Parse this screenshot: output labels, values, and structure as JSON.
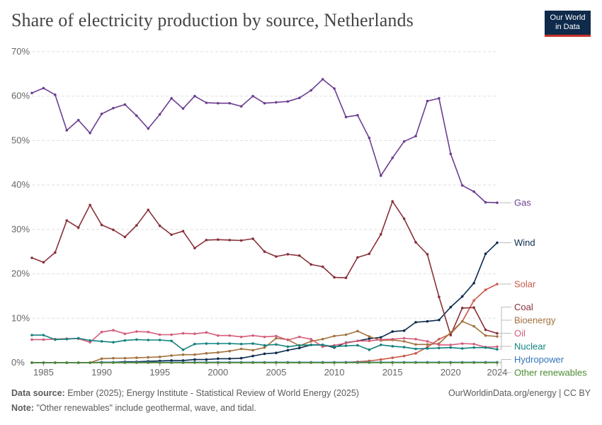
{
  "title": "Share of electricity production by source, Netherlands",
  "logo": {
    "line1": "Our World",
    "line2": "in Data"
  },
  "footer": {
    "source_label": "Data source:",
    "source_text": "Ember (2025); Energy Institute - Statistical Review of World Energy (2025)",
    "url": "OurWorldinData.org/energy | CC BY",
    "note_label": "Note:",
    "note_text": "\"Other renewables\" include geothermal, wave, and tidal."
  },
  "chart_data": {
    "type": "line",
    "title": "Share of electricity production by source, Netherlands",
    "xlim": [
      1984,
      2024
    ],
    "ylim": [
      0,
      70
    ],
    "y_ticks": [
      0,
      10,
      20,
      30,
      40,
      50,
      60,
      70
    ],
    "y_tick_labels": [
      "0%",
      "10%",
      "20%",
      "30%",
      "40%",
      "50%",
      "60%",
      "70%"
    ],
    "x_ticks": [
      1985,
      1990,
      1995,
      2000,
      2005,
      2010,
      2015,
      2020,
      2024
    ],
    "x_tick_labels": [
      "1985",
      "1990",
      "1995",
      "2000",
      "2005",
      "2010",
      "2015",
      "2020",
      "2024"
    ],
    "grid": "horizontal dashed",
    "legend": "labels at right end of lines",
    "x": [
      1984,
      1985,
      1986,
      1987,
      1988,
      1989,
      1990,
      1991,
      1992,
      1993,
      1994,
      1995,
      1996,
      1997,
      1998,
      1999,
      2000,
      2001,
      2002,
      2003,
      2004,
      2005,
      2006,
      2007,
      2008,
      2009,
      2010,
      2011,
      2012,
      2013,
      2014,
      2015,
      2016,
      2017,
      2018,
      2019,
      2020,
      2021,
      2022,
      2023,
      2024
    ],
    "series": [
      {
        "name": "Gas",
        "color": "#6d3e91",
        "values": [
          60.7,
          61.8,
          60.3,
          52.3,
          54.6,
          51.7,
          56.0,
          57.3,
          58.1,
          55.6,
          52.7,
          55.9,
          59.5,
          57.2,
          60.0,
          58.5,
          58.4,
          58.4,
          57.7,
          60.0,
          58.4,
          58.6,
          58.8,
          59.6,
          61.3,
          63.8,
          61.7,
          55.3,
          55.7,
          50.6,
          42.1,
          46.1,
          49.8,
          51.0,
          58.9,
          59.5,
          47.0,
          39.9,
          38.5,
          36.1,
          36.0
        ]
      },
      {
        "name": "Wind",
        "color": "#0c2b4f",
        "values": [
          0,
          0,
          0,
          0,
          0,
          0,
          0.1,
          0.1,
          0.2,
          0.2,
          0.3,
          0.4,
          0.5,
          0.5,
          0.7,
          0.7,
          0.9,
          0.9,
          1.0,
          1.5,
          2.0,
          2.2,
          2.8,
          3.3,
          4.0,
          4.0,
          3.4,
          4.5,
          4.9,
          5.4,
          5.7,
          7.0,
          7.2,
          9.1,
          9.3,
          9.6,
          12.5,
          14.9,
          17.9,
          24.5,
          27.0
        ]
      },
      {
        "name": "Solar",
        "color": "#c85a4a",
        "values": [
          0,
          0,
          0,
          0,
          0,
          0,
          0,
          0,
          0,
          0,
          0,
          0,
          0,
          0,
          0,
          0,
          0,
          0,
          0,
          0,
          0,
          0,
          0,
          0,
          0,
          0,
          0,
          0.1,
          0.2,
          0.4,
          0.7,
          1.1,
          1.5,
          2.1,
          3.5,
          5.3,
          6.5,
          9.3,
          14.0,
          16.4,
          17.7
        ]
      },
      {
        "name": "Coal",
        "color": "#883039",
        "values": [
          23.6,
          22.6,
          24.8,
          32.0,
          30.4,
          35.5,
          31.0,
          29.9,
          28.3,
          30.9,
          34.4,
          30.8,
          28.8,
          29.6,
          25.8,
          27.6,
          27.7,
          27.6,
          27.5,
          27.9,
          25.0,
          23.9,
          24.4,
          24.1,
          22.1,
          21.6,
          19.2,
          19.1,
          23.7,
          24.5,
          28.9,
          36.3,
          32.4,
          27.1,
          24.4,
          14.8,
          6.2,
          12.3,
          12.4,
          7.4,
          6.6
        ]
      },
      {
        "name": "Bioenergy",
        "color": "#a2723e",
        "values": [
          0,
          0,
          0,
          0,
          0,
          0,
          0.9,
          1.0,
          1.0,
          1.1,
          1.2,
          1.3,
          1.6,
          1.8,
          1.8,
          2.1,
          2.3,
          2.6,
          3.1,
          2.8,
          3.4,
          5.5,
          5.2,
          3.8,
          4.8,
          5.3,
          6.0,
          6.3,
          7.1,
          5.9,
          5.0,
          5.1,
          4.8,
          4.1,
          4.1,
          4.3,
          6.8,
          9.3,
          8.2,
          6.1,
          5.9
        ]
      },
      {
        "name": "Oil",
        "color": "#d45d7a",
        "values": [
          5.2,
          5.2,
          5.3,
          5.4,
          5.4,
          4.6,
          6.9,
          7.3,
          6.5,
          7.0,
          6.9,
          6.3,
          6.3,
          6.6,
          6.5,
          6.8,
          6.1,
          6.1,
          5.8,
          6.1,
          5.8,
          6.0,
          5.1,
          5.8,
          5.3,
          3.6,
          3.9,
          4.4,
          4.9,
          4.9,
          5.2,
          5.3,
          5.5,
          5.3,
          4.8,
          4.0,
          4.0,
          4.3,
          4.2,
          3.5,
          3.6
        ]
      },
      {
        "name": "Nuclear",
        "color": "#12827e",
        "values": [
          6.2,
          6.2,
          5.2,
          5.3,
          5.5,
          5.0,
          4.8,
          4.6,
          5.0,
          5.2,
          5.1,
          5.1,
          4.9,
          2.9,
          4.2,
          4.3,
          4.3,
          4.3,
          4.2,
          4.3,
          3.9,
          4.1,
          3.6,
          3.9,
          4.0,
          4.0,
          3.6,
          3.8,
          3.9,
          2.9,
          4.0,
          3.7,
          3.5,
          3.1,
          3.2,
          3.3,
          3.4,
          3.2,
          3.4,
          3.4,
          3.0
        ]
      },
      {
        "name": "Hydropower",
        "color": "#3575b9",
        "values": [
          0,
          0,
          0,
          0,
          0,
          0,
          0.1,
          0.1,
          0.1,
          0.1,
          0.1,
          0.1,
          0.1,
          0.1,
          0.1,
          0.1,
          0.1,
          0.1,
          0.1,
          0.1,
          0.1,
          0.1,
          0.1,
          0.1,
          0.1,
          0.1,
          0.1,
          0.1,
          0.1,
          0.1,
          0.1,
          0.1,
          0.1,
          0.1,
          0.1,
          0.1,
          0.1,
          0.1,
          0.1,
          0.1,
          0.1
        ]
      },
      {
        "name": "Other renewables",
        "color": "#4c8b32",
        "values": [
          0,
          0,
          0,
          0,
          0,
          0,
          0,
          0,
          0,
          0,
          0,
          0,
          0,
          0,
          0,
          0,
          0,
          0,
          0,
          0,
          0,
          0,
          0,
          0,
          0,
          0,
          0,
          0,
          0,
          0,
          0,
          0,
          0,
          0,
          0,
          0,
          0,
          0,
          0,
          0,
          0
        ]
      }
    ]
  }
}
